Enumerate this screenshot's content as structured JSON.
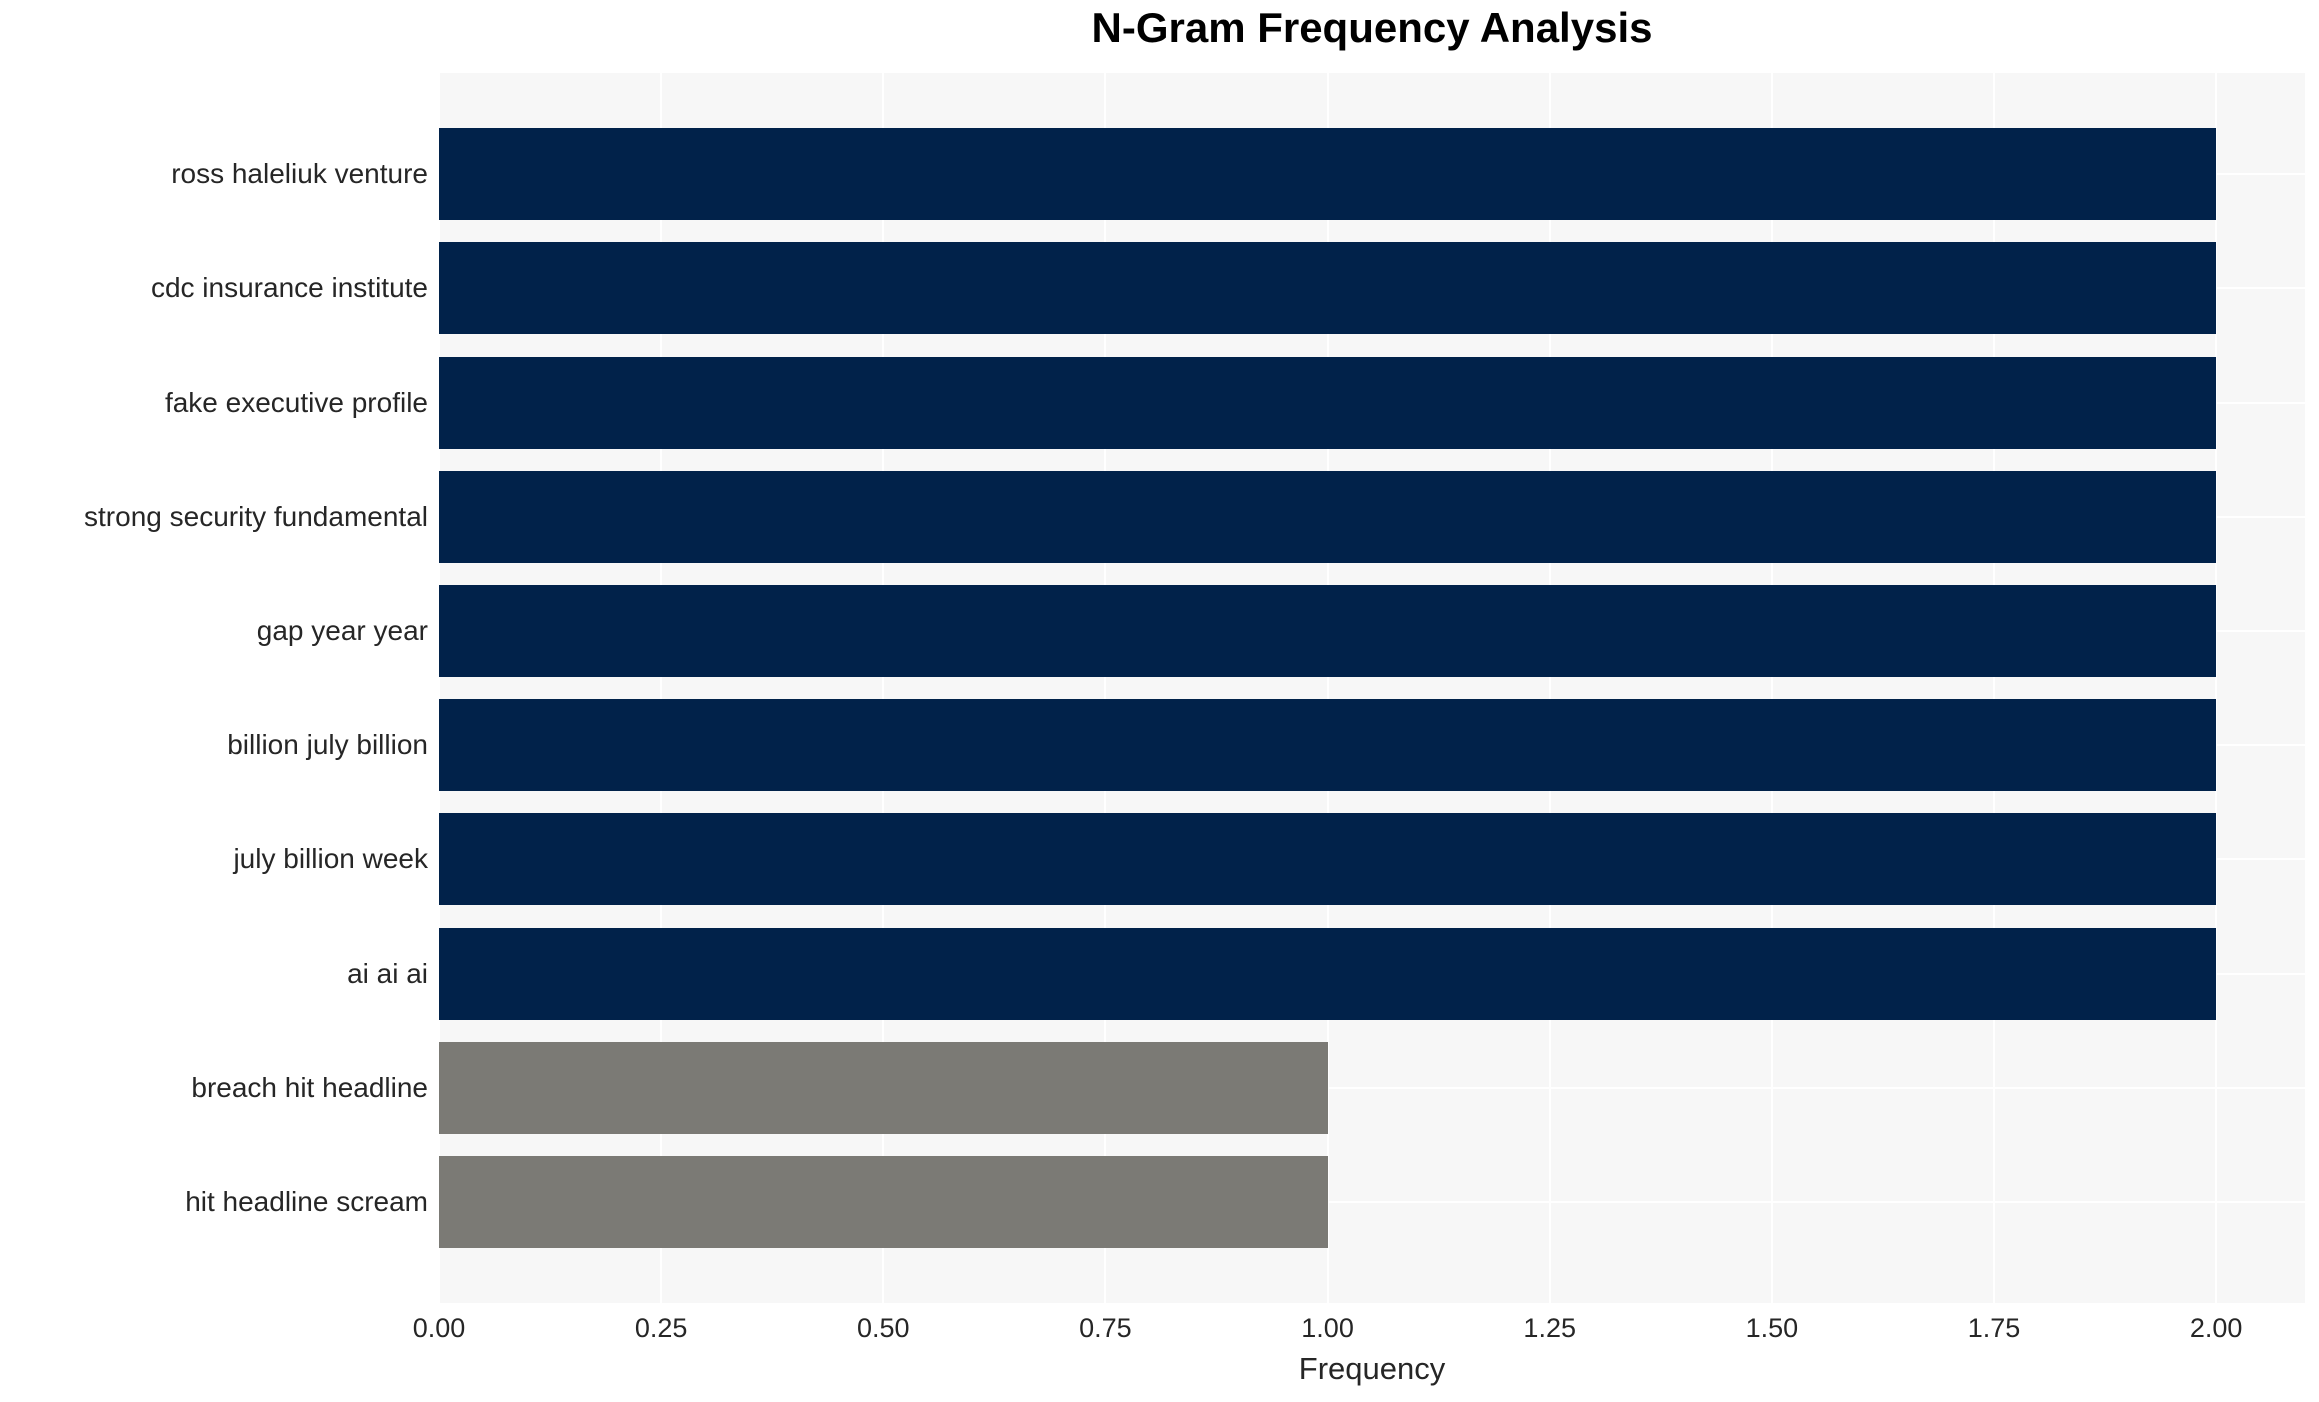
{
  "chart_data": {
    "type": "bar",
    "orientation": "horizontal",
    "title": "N-Gram Frequency Analysis",
    "xlabel": "Frequency",
    "ylabel": "",
    "categories": [
      "ross haleliuk venture",
      "cdc insurance institute",
      "fake executive profile",
      "strong security fundamental",
      "gap year year",
      "billion july billion",
      "july billion week",
      "ai ai ai",
      "breach hit headline",
      "hit headline scream"
    ],
    "values": [
      2,
      2,
      2,
      2,
      2,
      2,
      2,
      2,
      1,
      1
    ],
    "bar_colors": [
      "#01224a",
      "#01224a",
      "#01224a",
      "#01224a",
      "#01224a",
      "#01224a",
      "#01224a",
      "#01224a",
      "#7b7a75",
      "#7b7a75"
    ],
    "xlim": [
      0,
      2.1
    ],
    "xticks": [
      {
        "value": 0.0,
        "label": "0.00"
      },
      {
        "value": 0.25,
        "label": "0.25"
      },
      {
        "value": 0.5,
        "label": "0.50"
      },
      {
        "value": 0.75,
        "label": "0.75"
      },
      {
        "value": 1.0,
        "label": "1.00"
      },
      {
        "value": 1.25,
        "label": "1.25"
      },
      {
        "value": 1.5,
        "label": "1.50"
      },
      {
        "value": 1.75,
        "label": "1.75"
      },
      {
        "value": 2.0,
        "label": "2.00"
      }
    ],
    "grid": true,
    "legend_position": "none",
    "colors": {
      "plot_background": "#f7f7f7",
      "grid_line": "#ffffff",
      "text": "#262626",
      "title": "#000000",
      "page_background": "#ffffff"
    }
  }
}
